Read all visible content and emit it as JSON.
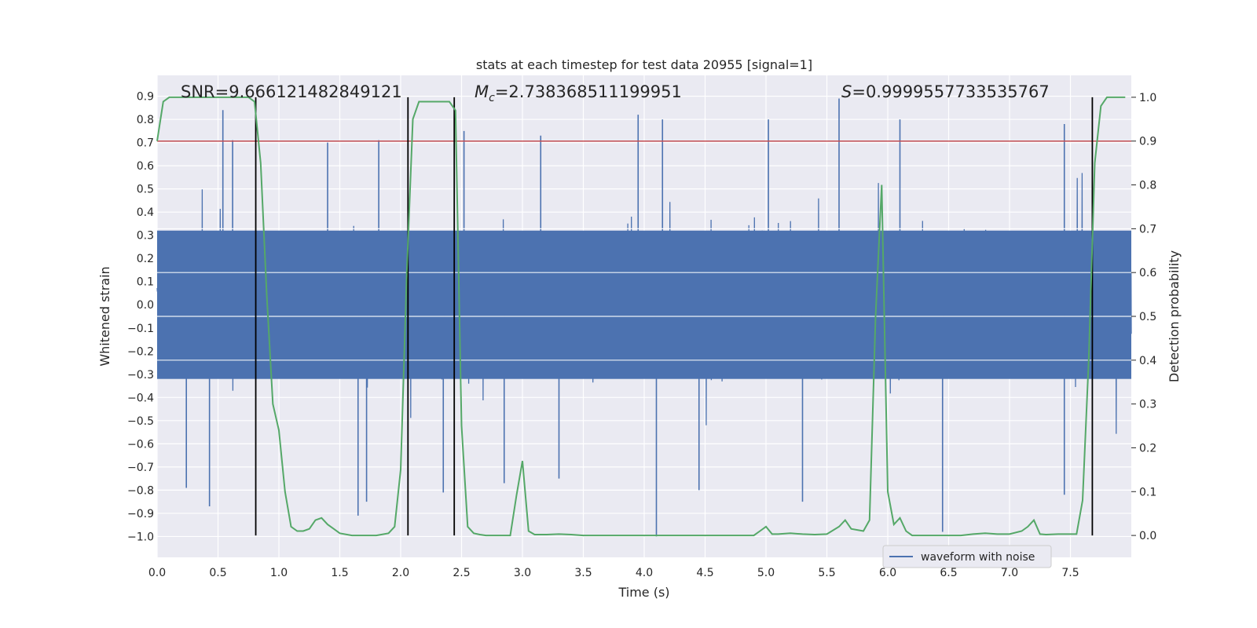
{
  "chart_data": {
    "type": "line",
    "title": "stats at each timestep for test data 20955 [signal=1]",
    "xlabel": "Time (s)",
    "ylabel": "Whitened strain",
    "y2label": "Detection probability",
    "xlim": [
      0.0,
      8.0
    ],
    "ylim": [
      -1.09,
      0.99
    ],
    "y2lim": [
      -0.05,
      1.05
    ],
    "x_ticks": [
      "0.0",
      "0.5",
      "1.0",
      "1.5",
      "2.0",
      "2.5",
      "3.0",
      "3.5",
      "4.0",
      "4.5",
      "5.0",
      "5.5",
      "6.0",
      "6.5",
      "7.0",
      "7.5"
    ],
    "y_ticks": [
      "0.9",
      "0.8",
      "0.7",
      "0.6",
      "0.5",
      "0.4",
      "0.3",
      "0.2",
      "0.1",
      "0.0",
      "−0.1",
      "−0.2",
      "−0.3",
      "−0.4",
      "−0.5",
      "−0.6",
      "−0.7",
      "−0.8",
      "−0.9",
      "−1.0"
    ],
    "y2_ticks": [
      "1.0",
      "0.9",
      "0.8",
      "0.7",
      "0.6",
      "0.5",
      "0.4",
      "0.3",
      "0.2",
      "0.1",
      "0.0"
    ],
    "grid": true,
    "legend": {
      "position": "lower-right",
      "entries": [
        "waveform with noise"
      ]
    },
    "annotations": {
      "snr": "SNR=9.666121482849121",
      "mc_symbol": "M",
      "mc_sub": "c",
      "mc_value": "=2.738368511199951",
      "s_symbol": "S",
      "s_value": "=0.9999557733535767"
    },
    "threshold": {
      "axis": "y2",
      "value": 0.9,
      "color": "#c44e52"
    },
    "vertical_lines_x": [
      0.81,
      2.06,
      2.44,
      7.68
    ],
    "series": [
      {
        "name": "waveform with noise",
        "axis": "y",
        "color": "#4c72b0",
        "description_mode": "noise",
        "x_range": [
          0.0,
          8.0
        ],
        "core_amplitude": 0.32,
        "outlier_peaks": [
          {
            "x": 0.54,
            "y": 0.84
          },
          {
            "x": 0.62,
            "y": 0.71
          },
          {
            "x": 1.4,
            "y": 0.7
          },
          {
            "x": 1.82,
            "y": 0.71
          },
          {
            "x": 2.52,
            "y": 0.75
          },
          {
            "x": 3.15,
            "y": 0.73
          },
          {
            "x": 3.95,
            "y": 0.82
          },
          {
            "x": 4.15,
            "y": 0.8
          },
          {
            "x": 5.02,
            "y": 0.8
          },
          {
            "x": 5.6,
            "y": 0.89
          },
          {
            "x": 6.1,
            "y": 0.8
          },
          {
            "x": 7.45,
            "y": 0.78
          },
          {
            "x": 0.43,
            "y": -0.87
          },
          {
            "x": 0.24,
            "y": -0.79
          },
          {
            "x": 1.65,
            "y": -0.91
          },
          {
            "x": 1.72,
            "y": -0.85
          },
          {
            "x": 2.35,
            "y": -0.81
          },
          {
            "x": 4.1,
            "y": -1.0
          },
          {
            "x": 4.45,
            "y": -0.8
          },
          {
            "x": 5.3,
            "y": -0.85
          },
          {
            "x": 6.45,
            "y": -0.98
          },
          {
            "x": 7.45,
            "y": -0.82
          },
          {
            "x": 2.85,
            "y": -0.77
          },
          {
            "x": 3.3,
            "y": -0.75
          }
        ]
      },
      {
        "name": "",
        "axis": "y2",
        "color": "#55a868",
        "x": [
          0.0,
          0.05,
          0.1,
          0.2,
          0.3,
          0.4,
          0.5,
          0.6,
          0.7,
          0.75,
          0.8,
          0.85,
          0.9,
          0.95,
          1.0,
          1.05,
          1.1,
          1.15,
          1.2,
          1.25,
          1.3,
          1.35,
          1.4,
          1.45,
          1.5,
          1.6,
          1.7,
          1.8,
          1.9,
          1.95,
          2.0,
          2.05,
          2.1,
          2.15,
          2.2,
          2.3,
          2.4,
          2.45,
          2.5,
          2.55,
          2.6,
          2.65,
          2.7,
          2.8,
          2.9,
          2.95,
          3.0,
          3.05,
          3.1,
          3.2,
          3.3,
          3.4,
          3.5,
          3.6,
          3.7,
          3.8,
          3.9,
          4.0,
          4.1,
          4.2,
          4.3,
          4.4,
          4.5,
          4.6,
          4.7,
          4.8,
          4.9,
          4.95,
          5.0,
          5.05,
          5.1,
          5.2,
          5.3,
          5.4,
          5.5,
          5.6,
          5.65,
          5.7,
          5.8,
          5.85,
          5.9,
          5.95,
          6.0,
          6.05,
          6.1,
          6.15,
          6.2,
          6.3,
          6.4,
          6.5,
          6.6,
          6.7,
          6.8,
          6.9,
          7.0,
          7.1,
          7.15,
          7.2,
          7.25,
          7.3,
          7.4,
          7.5,
          7.55,
          7.6,
          7.65,
          7.7,
          7.75,
          7.8,
          7.85,
          7.9,
          7.95
        ],
        "y": [
          0.9,
          0.99,
          1.0,
          1.0,
          1.0,
          1.0,
          1.0,
          1.0,
          1.0,
          1.0,
          0.99,
          0.85,
          0.55,
          0.3,
          0.24,
          0.1,
          0.02,
          0.01,
          0.01,
          0.015,
          0.035,
          0.04,
          0.025,
          0.015,
          0.005,
          0.0,
          0.0,
          0.0,
          0.005,
          0.02,
          0.15,
          0.6,
          0.95,
          0.99,
          0.99,
          0.99,
          0.99,
          0.97,
          0.25,
          0.02,
          0.005,
          0.002,
          0.0,
          0.0,
          0.0,
          0.09,
          0.17,
          0.01,
          0.002,
          0.002,
          0.003,
          0.002,
          0.0,
          0.0,
          0.0,
          0.0,
          0.0,
          0.0,
          0.0,
          0.0,
          0.0,
          0.0,
          0.0,
          0.0,
          0.0,
          0.0,
          0.0,
          0.01,
          0.02,
          0.003,
          0.003,
          0.005,
          0.003,
          0.002,
          0.003,
          0.02,
          0.035,
          0.015,
          0.01,
          0.035,
          0.5,
          0.8,
          0.1,
          0.025,
          0.04,
          0.01,
          0.0,
          0.0,
          0.0,
          0.0,
          0.0,
          0.003,
          0.005,
          0.003,
          0.003,
          0.01,
          0.02,
          0.035,
          0.003,
          0.002,
          0.003,
          0.003,
          0.003,
          0.08,
          0.4,
          0.85,
          0.98,
          1.0,
          1.0,
          1.0,
          1.0
        ]
      }
    ]
  }
}
